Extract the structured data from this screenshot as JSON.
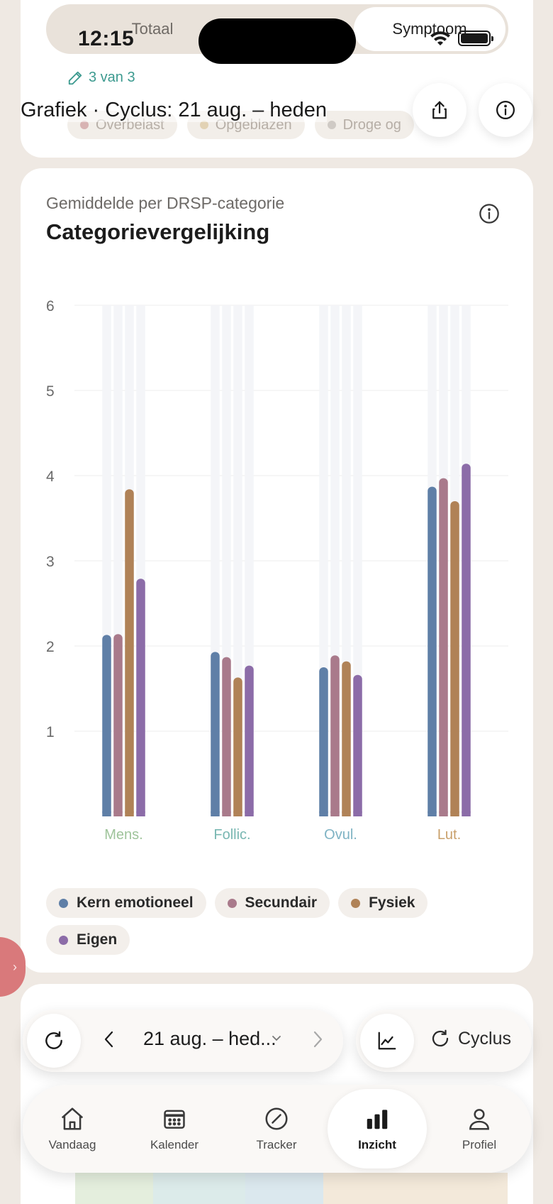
{
  "status": {
    "time": "12:15"
  },
  "segmented": {
    "left_label": "Totaal",
    "right_label": "Symptoom"
  },
  "counter": {
    "text": "3 van 3"
  },
  "faded_chips": [
    {
      "label": "Overbelast",
      "color": "#d8b3b3"
    },
    {
      "label": "Opgeblazen",
      "color": "#e2d2b4"
    },
    {
      "label": "Droge og",
      "color": "#cfcac5"
    }
  ],
  "header": {
    "title": "Grafiek · Cyclus: 21 aug. – heden"
  },
  "chart_card": {
    "subtitle": "Gemiddelde per DRSP-categorie",
    "title": "Categorievergelijking"
  },
  "chart_data": {
    "type": "bar",
    "categories": [
      "Mens.",
      "Follic.",
      "Ovul.",
      "Lut."
    ],
    "category_colors": [
      "#9fc49b",
      "#79b7b2",
      "#7fb3c4",
      "#c9a06b"
    ],
    "yticks": [
      1,
      2,
      3,
      4,
      5,
      6
    ],
    "ylim": [
      0,
      6
    ],
    "grid": true,
    "legend_position": "bottom",
    "series": [
      {
        "name": "Kern emotioneel",
        "color": "#5f7fa7",
        "values": [
          2.13,
          1.93,
          1.75,
          3.87
        ]
      },
      {
        "name": "Secundair",
        "color": "#a97a8b",
        "values": [
          2.14,
          1.87,
          1.89,
          3.97
        ]
      },
      {
        "name": "Fysiek",
        "color": "#b08257",
        "values": [
          3.84,
          1.63,
          1.82,
          3.7
        ]
      },
      {
        "name": "Eigen",
        "color": "#8c6ca8",
        "values": [
          2.79,
          1.77,
          1.66,
          4.14
        ]
      }
    ]
  },
  "range_control": {
    "label": "21 aug. – hed..."
  },
  "mode_control": {
    "label": "Cyclus"
  },
  "tabs": [
    {
      "label": "Vandaag",
      "icon": "house-icon"
    },
    {
      "label": "Kalender",
      "icon": "calendar-icon"
    },
    {
      "label": "Tracker",
      "icon": "tracker-icon"
    },
    {
      "label": "Inzicht",
      "icon": "bar-chart-icon",
      "active": true
    },
    {
      "label": "Profiel",
      "icon": "person-icon"
    }
  ],
  "colors": {
    "background": "#efe9e3",
    "accent": "#3c9a8f",
    "side_handle": "#d9797b"
  }
}
